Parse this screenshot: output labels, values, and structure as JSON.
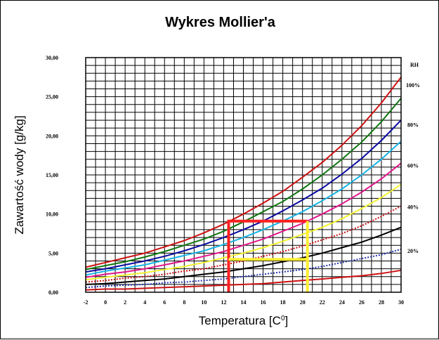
{
  "chart_data": {
    "type": "line",
    "title": "Wykres Mollier'a",
    "xlabel": "Temperatura [C",
    "xlabel_sup": "0",
    "xlabel_close": "]",
    "ylabel": "Zawartość wody [g/kg]",
    "xlim": [
      -2,
      30
    ],
    "ylim": [
      0,
      30
    ],
    "grid": true,
    "x_ticks": [
      "-2",
      "0",
      "2",
      "4",
      "6",
      "8",
      "10",
      "12",
      "14",
      "16",
      "18",
      "20",
      "22",
      "24",
      "26",
      "28",
      "30"
    ],
    "y_ticks": [
      "0,00",
      "5,00",
      "10,00",
      "15,00",
      "20,00",
      "25,00",
      "30,00"
    ],
    "rh_header": "RH",
    "rh_labels": [
      {
        "text": "100%",
        "y": 26.5
      },
      {
        "text": "80%",
        "y": 21.4
      },
      {
        "text": "60%",
        "y": 16.2
      },
      {
        "text": "40%",
        "y": 10.9
      },
      {
        "text": "20%",
        "y": 5.3
      }
    ],
    "x": [
      -2,
      0,
      2,
      4,
      6,
      8,
      10,
      12,
      14,
      16,
      18,
      20,
      22,
      24,
      26,
      28,
      30
    ],
    "series": [
      {
        "rh": 100,
        "color": "#cc1111",
        "style": "solid",
        "values": [
          3.2,
          3.8,
          4.4,
          5.0,
          5.8,
          6.6,
          7.6,
          8.7,
          10.0,
          11.4,
          12.9,
          14.7,
          16.6,
          18.8,
          21.3,
          24.2,
          27.5
        ]
      },
      {
        "rh": 90,
        "color": "#117711",
        "style": "solid",
        "values": [
          2.9,
          3.4,
          3.9,
          4.5,
          5.2,
          6.0,
          6.8,
          7.8,
          9.0,
          10.3,
          11.6,
          13.2,
          15.0,
          17.0,
          19.2,
          21.8,
          24.8
        ]
      },
      {
        "rh": 80,
        "color": "#0a0aa0",
        "style": "solid",
        "values": [
          2.6,
          3.0,
          3.5,
          4.0,
          4.6,
          5.3,
          6.1,
          7.0,
          8.0,
          9.1,
          10.4,
          11.8,
          13.3,
          15.1,
          17.1,
          19.4,
          22.0
        ]
      },
      {
        "rh": 70,
        "color": "#18b4e8",
        "style": "solid",
        "values": [
          2.2,
          2.7,
          3.1,
          3.5,
          4.1,
          4.7,
          5.3,
          6.1,
          7.0,
          8.0,
          9.1,
          10.3,
          11.7,
          13.2,
          15.0,
          17.0,
          19.3
        ]
      },
      {
        "rh": 60,
        "color": "#e0188a",
        "style": "solid",
        "values": [
          1.9,
          2.3,
          2.6,
          3.0,
          3.5,
          4.0,
          4.6,
          5.2,
          6.0,
          6.8,
          7.8,
          8.8,
          10.0,
          11.3,
          12.8,
          14.5,
          16.5
        ]
      },
      {
        "rh": 50,
        "color": "#f2f230",
        "style": "solid",
        "values": [
          1.6,
          1.9,
          2.2,
          2.5,
          2.9,
          3.3,
          3.8,
          4.4,
          5.0,
          5.7,
          6.5,
          7.4,
          8.3,
          9.4,
          10.7,
          12.1,
          13.8
        ]
      },
      {
        "rh": 40,
        "color": "#cc1111",
        "style": "dotted",
        "values": [
          1.3,
          1.5,
          1.8,
          2.0,
          2.3,
          2.7,
          3.0,
          3.5,
          4.0,
          4.6,
          5.2,
          5.9,
          6.7,
          7.5,
          8.5,
          9.7,
          11.0
        ]
      },
      {
        "rh": 30,
        "color": "#000000",
        "style": "solid",
        "values": [
          1.0,
          1.1,
          1.3,
          1.5,
          1.7,
          2.0,
          2.3,
          2.6,
          3.0,
          3.4,
          3.9,
          4.4,
          5.0,
          5.7,
          6.4,
          7.3,
          8.3
        ]
      },
      {
        "rh": 20,
        "color": "#2233aa",
        "style": "dotted",
        "values": [
          0.6,
          0.8,
          0.9,
          1.0,
          1.2,
          1.3,
          1.5,
          1.7,
          2.0,
          2.3,
          2.6,
          2.9,
          3.3,
          3.8,
          4.3,
          4.8,
          5.5
        ]
      },
      {
        "rh": 10,
        "color": "#cc1111",
        "style": "solid",
        "values": [
          0.3,
          0.4,
          0.4,
          0.5,
          0.6,
          0.7,
          0.8,
          0.9,
          1.0,
          1.1,
          1.3,
          1.5,
          1.7,
          1.9,
          2.1,
          2.4,
          2.8
        ]
      }
    ],
    "annotations": [
      {
        "color": "#ff2020",
        "path": [
          [
            12.5,
            0
          ],
          [
            12.5,
            9.1
          ],
          [
            20.5,
            9.1
          ]
        ]
      },
      {
        "color": "#ffee33",
        "path": [
          [
            12.5,
            4.2
          ],
          [
            20.5,
            4.2
          ]
        ]
      },
      {
        "color": "#ffee33",
        "path": [
          [
            20.5,
            9.1
          ],
          [
            20.5,
            0
          ]
        ]
      }
    ]
  }
}
